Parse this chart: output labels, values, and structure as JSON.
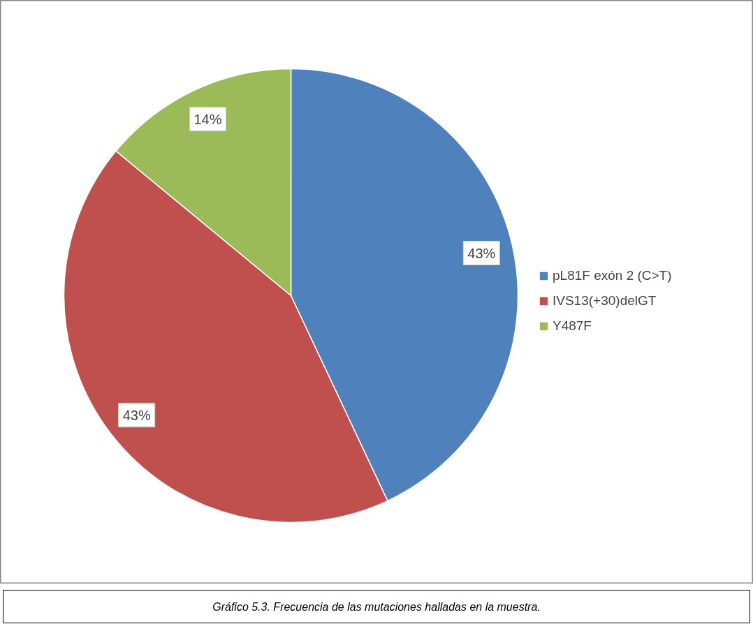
{
  "chart_data": {
    "type": "pie",
    "categories": [
      "pL81F exón 2 (C>T)",
      "IVS13(+30)delGT",
      "Y487F"
    ],
    "values": [
      43,
      43,
      14
    ],
    "colors": [
      "#4f81bd",
      "#c0504d",
      "#9bbb59"
    ],
    "value_labels": [
      "43%",
      "43%",
      "14%"
    ],
    "legend": "right",
    "annotations": [
      "Gráfico 5.3. Frecuencia de las mutaciones halladas en la muestra."
    ]
  }
}
